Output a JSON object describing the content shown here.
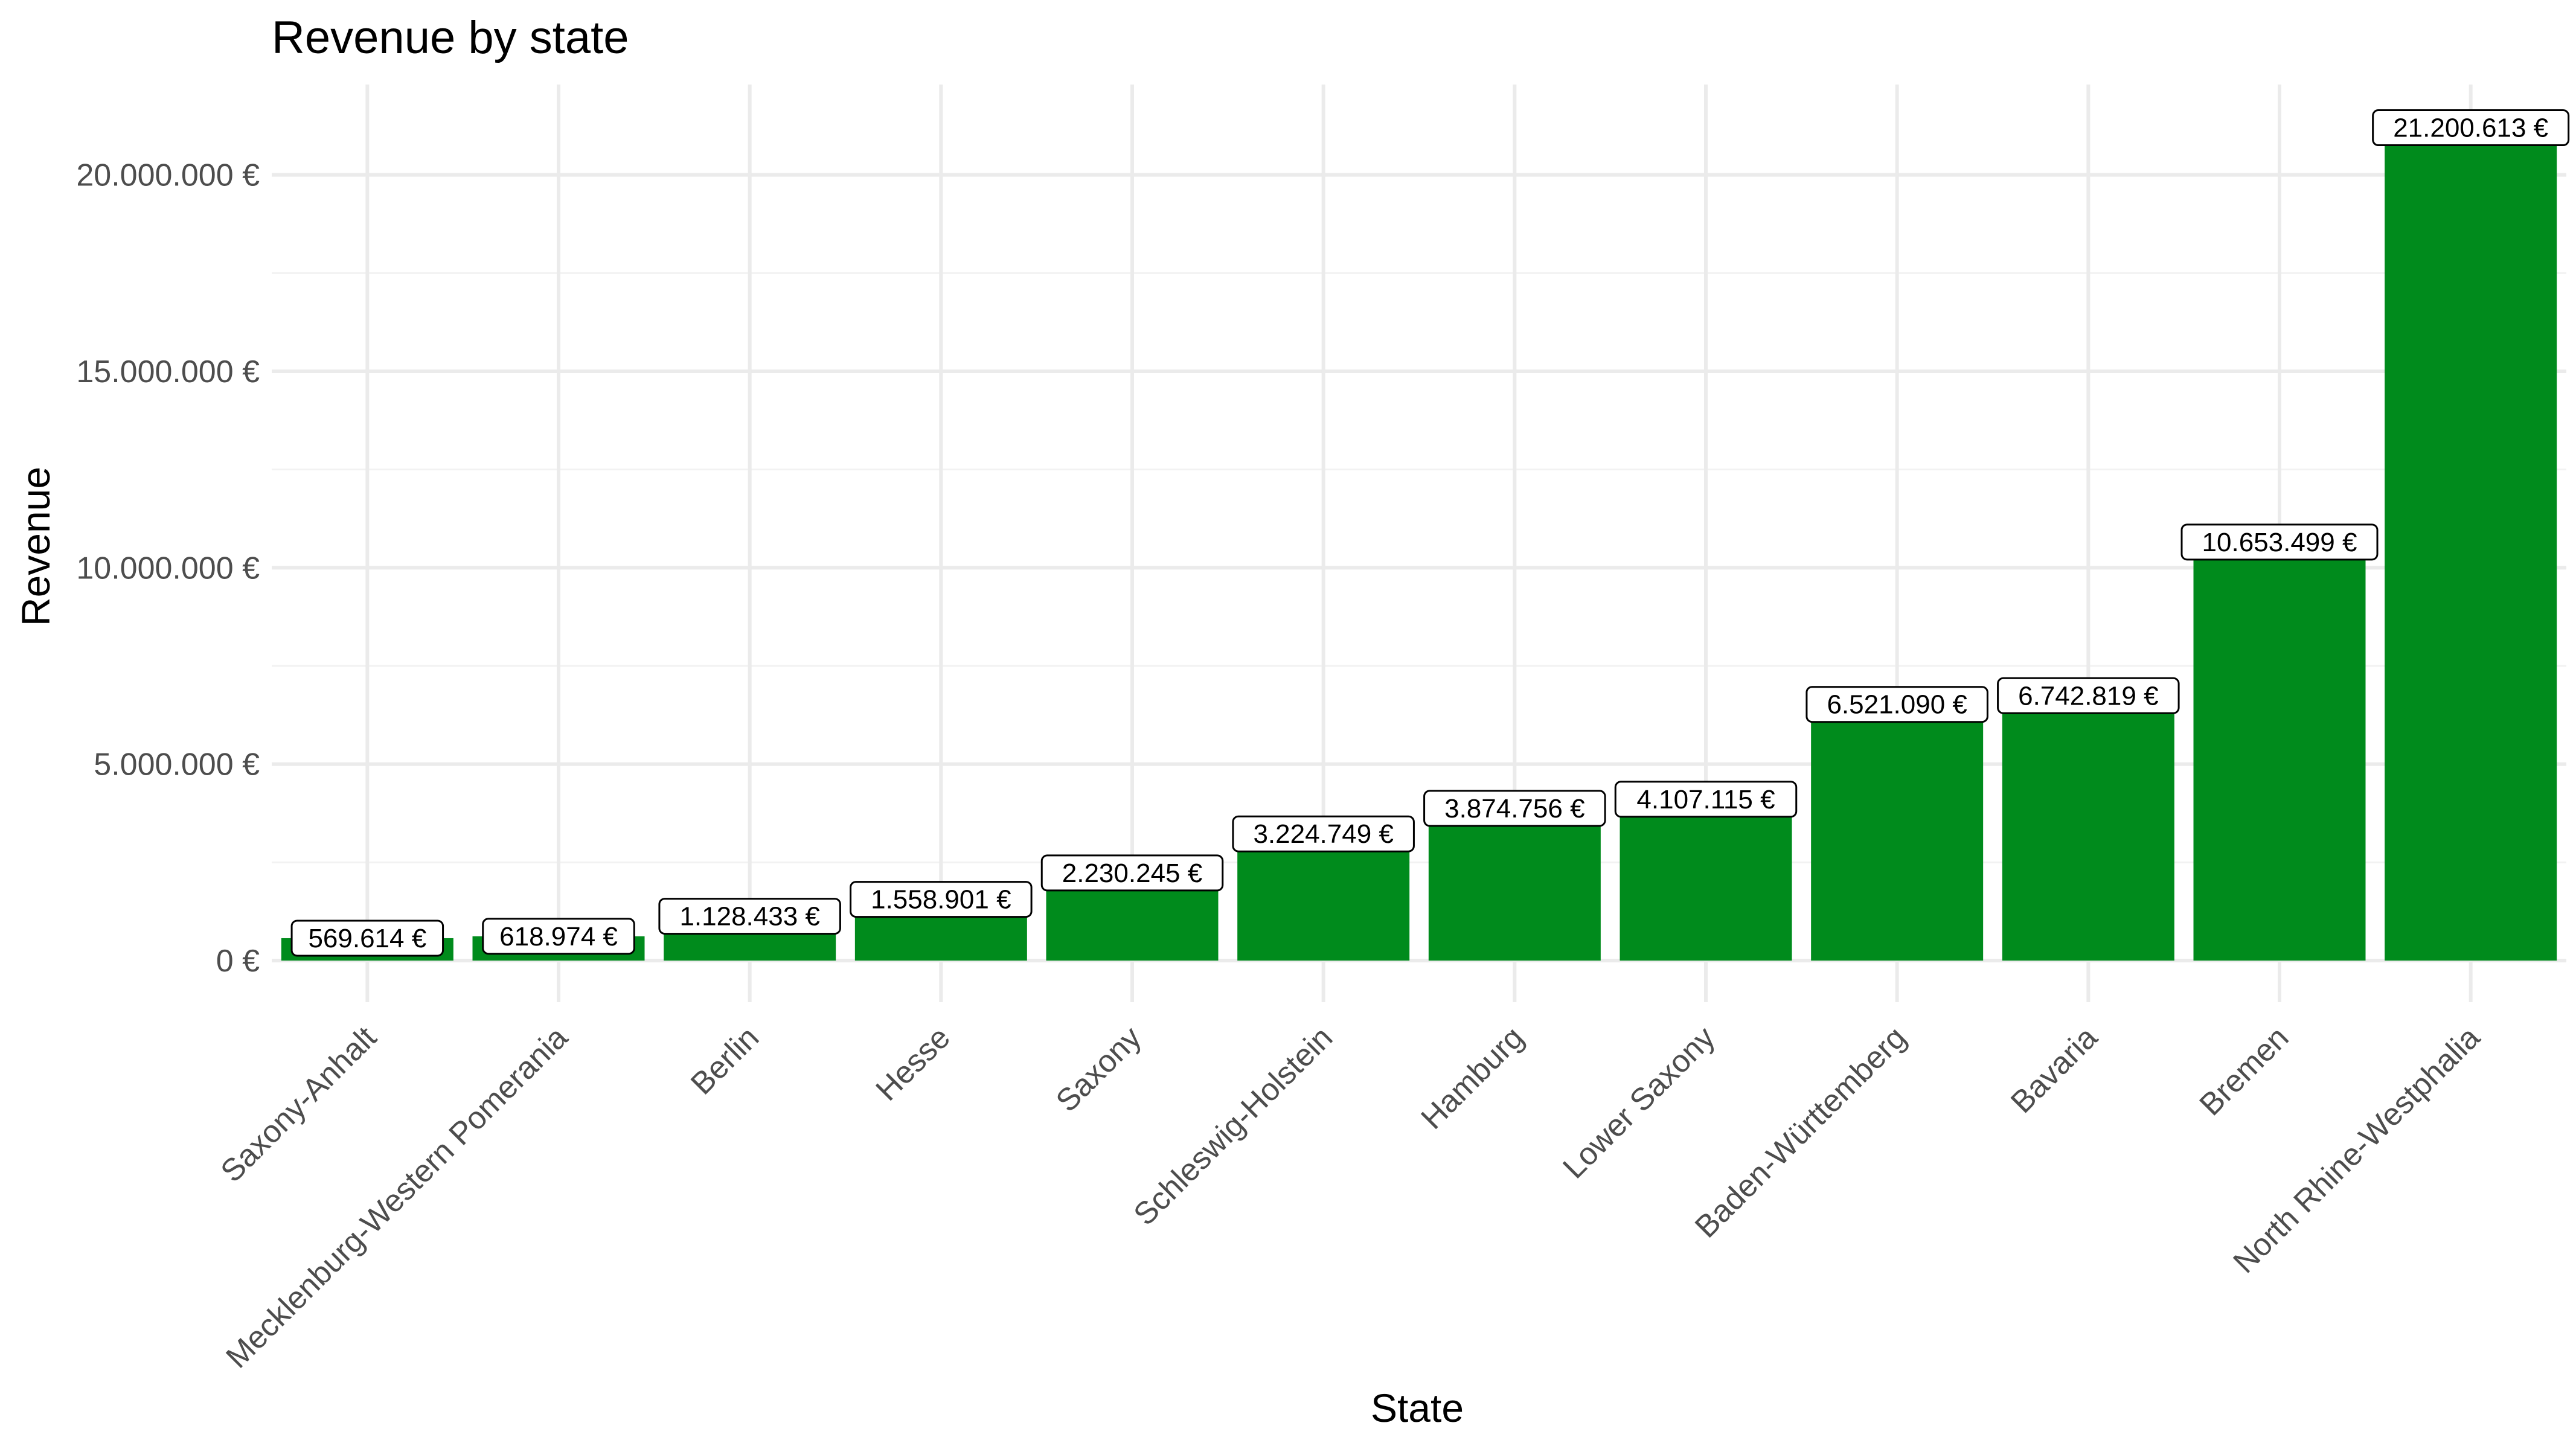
{
  "chart_data": {
    "type": "bar",
    "title": "Revenue by state",
    "xlabel": "State",
    "ylabel": "Revenue",
    "categories": [
      "Saxony-Anhalt",
      "Mecklenburg-Western Pomerania",
      "Berlin",
      "Hesse",
      "Saxony",
      "Schleswig-Holstein",
      "Hamburg",
      "Lower Saxony",
      "Baden-Württemberg",
      "Bavaria",
      "Bremen",
      "North Rhine-Westphalia"
    ],
    "values": [
      569614,
      618974,
      1128433,
      1558901,
      2230245,
      3224749,
      3874756,
      4107115,
      6521090,
      6742819,
      10653499,
      21200613
    ],
    "data_labels": [
      "569.614 €",
      "618.974 €",
      "1.128.433 €",
      "1.558.901 €",
      "2.230.245 €",
      "3.224.749 €",
      "3.874.756 €",
      "4.107.115 €",
      "6.521.090 €",
      "6.742.819 €",
      "10.653.499 €",
      "21.200.613 €"
    ],
    "yticks": [
      0,
      5000000,
      10000000,
      15000000,
      20000000
    ],
    "ytick_labels": [
      "0 €",
      "5.000.000 €",
      "10.000.000 €",
      "15.000.000 €",
      "20.000.000 €"
    ],
    "ylim": [
      -1060000,
      22300000
    ],
    "grid": true,
    "bar_color": "#008b1c",
    "tick_label_color": "#4d4d4d",
    "grid_color": "#ebebeb"
  }
}
